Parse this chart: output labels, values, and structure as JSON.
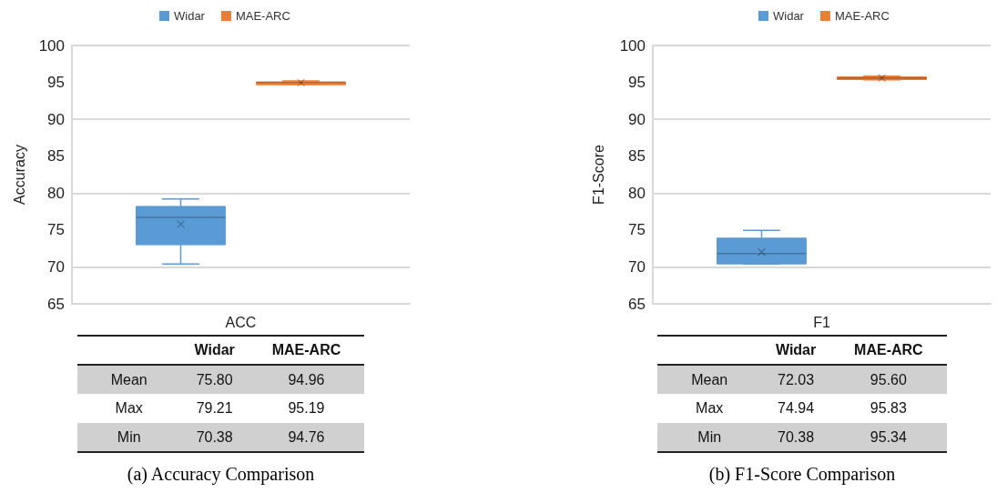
{
  "chart_data": [
    {
      "type": "box",
      "title": "(a) Accuracy Comparison",
      "ylabel": "Accuracy",
      "categories": [
        "ACC"
      ],
      "ylim": [
        65,
        100
      ],
      "yticks": [
        65,
        70,
        75,
        80,
        85,
        90,
        95,
        100
      ],
      "grid": "y",
      "legend": "top",
      "data_labels": true,
      "annotations": [
        "Mean",
        "75.80",
        "94.96",
        "Max",
        "79.21",
        "95.19",
        "Min",
        "70.38",
        "94.76"
      ],
      "series": [
        {
          "name": "Widar",
          "color": "#5b9bd5",
          "boxes": [
            {
              "low": 70.38,
              "q1": 73.0,
              "median": 76.7,
              "q3": 78.2,
              "high": 79.21,
              "mean": 75.8
            }
          ]
        },
        {
          "name": "MAE-ARC",
          "color": "#ed7d31",
          "boxes": [
            {
              "low": 94.76,
              "q1": 94.9,
              "median": 95.0,
              "q3": 95.05,
              "high": 95.19,
              "mean": 94.96
            }
          ]
        }
      ]
    },
    {
      "type": "box",
      "title": "(b) F1-Score Comparison",
      "ylabel": "F1-Score",
      "categories": [
        "F1"
      ],
      "ylim": [
        65,
        100
      ],
      "yticks": [
        65,
        70,
        75,
        80,
        85,
        90,
        95,
        100
      ],
      "grid": "y",
      "legend": "top",
      "data_labels": true,
      "annotations": [
        "Mean",
        "72.03",
        "95.60",
        "Max",
        "74.94",
        "95.83",
        "Min",
        "70.38",
        "95.34"
      ],
      "series": [
        {
          "name": "Widar",
          "color": "#5b9bd5",
          "boxes": [
            {
              "low": 70.38,
              "q1": 70.4,
              "median": 71.8,
              "q3": 73.9,
              "high": 74.94,
              "mean": 72.03
            }
          ]
        },
        {
          "name": "MAE-ARC",
          "color": "#ed7d31",
          "boxes": [
            {
              "low": 95.34,
              "q1": 95.5,
              "median": 95.6,
              "q3": 95.75,
              "high": 95.83,
              "mean": 95.6
            }
          ]
        }
      ]
    }
  ]
}
